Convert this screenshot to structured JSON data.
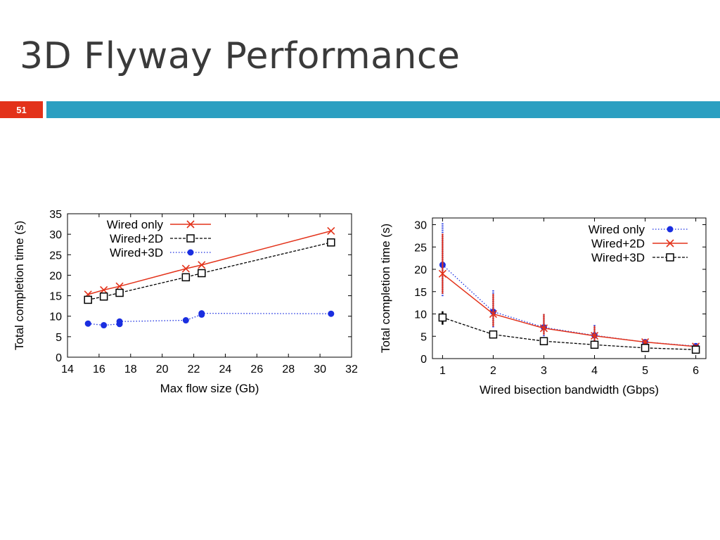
{
  "slide": {
    "title": "3D Flyway Performance",
    "number": "51"
  },
  "colors": {
    "accent_bar": "#2b9fc1",
    "number_box": "#e3321a",
    "wired_only_left": "#e3321a",
    "wired_2d": "#000000",
    "wired_3d": "#1a2ee0",
    "wired_only_right": "#1a2ee0",
    "wired_2d_right": "#e3321a"
  },
  "chart_data": [
    {
      "type": "line",
      "title": "",
      "xlabel": "Max flow size (Gb)",
      "ylabel": "Total completion time (s)",
      "xlim": [
        14,
        32
      ],
      "ylim": [
        0,
        35
      ],
      "xticks": [
        "14",
        "16",
        "18",
        "20",
        "22",
        "24",
        "26",
        "28",
        "30",
        "32"
      ],
      "yticks": [
        "0",
        "5",
        "10",
        "15",
        "20",
        "25",
        "30",
        "35"
      ],
      "legend_position": "top-left",
      "series": [
        {
          "name": "Wired only",
          "marker": "x",
          "style": "solid",
          "color": "#e3321a",
          "x": [
            15.3,
            16.3,
            17.3,
            21.5,
            22.5,
            30.7
          ],
          "y": [
            15.3,
            16.4,
            17.3,
            21.6,
            22.5,
            30.8
          ]
        },
        {
          "name": "Wired+2D",
          "marker": "square",
          "style": "dashed",
          "color": "#000000",
          "x": [
            15.3,
            16.3,
            17.3,
            21.5,
            22.5,
            30.7
          ],
          "y": [
            14.0,
            14.8,
            15.7,
            19.5,
            20.5,
            28.0
          ]
        },
        {
          "name": "Wired+3D",
          "marker": "circle",
          "style": "dotted",
          "color": "#1a2ee0",
          "x": [
            15.3,
            16.3,
            17.3,
            17.3,
            21.5,
            22.5,
            22.5,
            30.7
          ],
          "y": [
            8.2,
            7.8,
            8.1,
            8.7,
            9.0,
            10.4,
            10.7,
            10.6
          ]
        }
      ]
    },
    {
      "type": "line",
      "title": "",
      "xlabel": "Wired bisection bandwidth (Gbps)",
      "ylabel": "Total completion time (s)",
      "xlim": [
        0.8,
        6.2
      ],
      "ylim": [
        0,
        31.5
      ],
      "xticks": [
        "1",
        "2",
        "3",
        "4",
        "5",
        "6"
      ],
      "yticks": [
        "0",
        "5",
        "10",
        "15",
        "20",
        "25",
        "30"
      ],
      "legend_position": "top-right",
      "series": [
        {
          "name": "Wired only",
          "marker": "circle",
          "style": "dotted",
          "color": "#1a2ee0",
          "x": [
            1,
            2,
            3,
            4,
            5,
            6
          ],
          "y": [
            21.0,
            10.5,
            7.0,
            5.2,
            3.7,
            2.8
          ],
          "err_low": [
            14.0,
            7.0,
            5.0,
            3.5,
            3.0,
            2.3
          ],
          "err_high": [
            30.5,
            15.3,
            10.2,
            7.6,
            4.2,
            3.1
          ]
        },
        {
          "name": "Wired+2D",
          "marker": "x",
          "style": "solid",
          "color": "#e3321a",
          "x": [
            1,
            2,
            3,
            4,
            5,
            6
          ],
          "y": [
            19.0,
            10.0,
            6.8,
            5.1,
            3.7,
            2.7
          ],
          "err_low": [
            14.5,
            7.2,
            5.3,
            3.8,
            3.0,
            2.3
          ],
          "err_high": [
            28.0,
            14.5,
            10.0,
            7.3,
            4.3,
            3.1
          ]
        },
        {
          "name": "Wired+3D",
          "marker": "square",
          "style": "dashed",
          "color": "#000000",
          "x": [
            1,
            2,
            3,
            4,
            5,
            6
          ],
          "y": [
            9.2,
            5.4,
            3.9,
            3.1,
            2.4,
            2.0
          ],
          "err_low": [
            7.6,
            4.6,
            3.4,
            2.6,
            2.0,
            1.6
          ],
          "err_high": [
            10.6,
            6.0,
            4.3,
            3.4,
            2.7,
            2.3
          ]
        }
      ]
    }
  ]
}
